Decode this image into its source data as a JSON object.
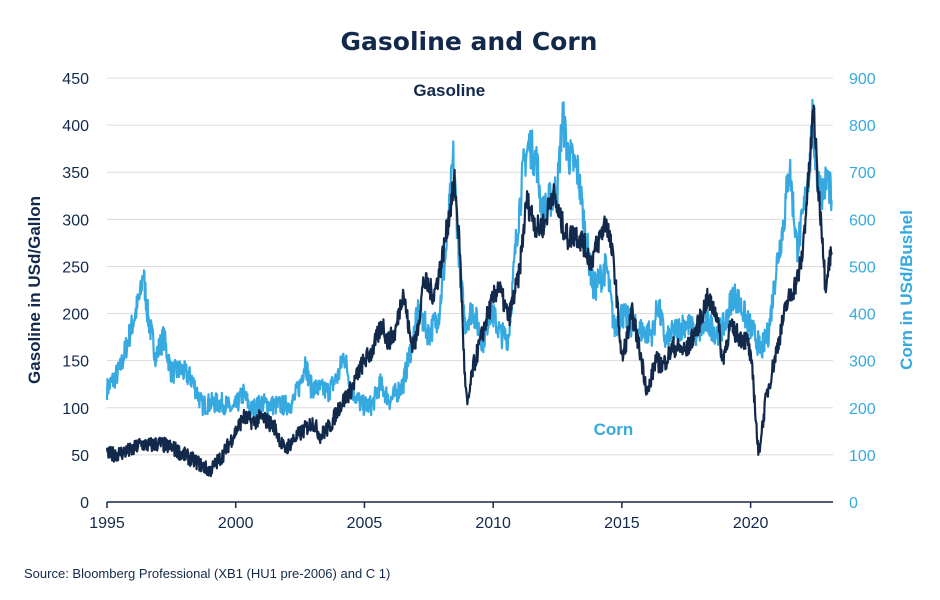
{
  "chart_data": {
    "type": "line",
    "title": "Gasoline and Corn",
    "ylabel_left": "Gasoline in USd/Gallon",
    "ylabel_right": "Corn in USd/Bushel",
    "xlim": [
      1995,
      2023.2
    ],
    "ylim_left": [
      0,
      450
    ],
    "ylim_right": [
      0,
      900
    ],
    "x_ticks": [
      1995,
      2000,
      2005,
      2010,
      2015,
      2020
    ],
    "y_ticks_left": [
      0,
      50,
      100,
      150,
      200,
      250,
      300,
      350,
      400,
      450
    ],
    "y_ticks_right": [
      0,
      100,
      200,
      300,
      400,
      500,
      600,
      700,
      800,
      900
    ],
    "grid": true,
    "source": "Source: Bloomberg Professional  (XB1 (HU1 pre-2006) and C 1)",
    "series": [
      {
        "name": "Gasoline",
        "axis": "left",
        "color": "#13294b",
        "label_at": [
          2006.9,
          437
        ],
        "points": [
          [
            1995.0,
            50
          ],
          [
            1995.5,
            52
          ],
          [
            1996.0,
            55
          ],
          [
            1996.3,
            62
          ],
          [
            1996.6,
            60
          ],
          [
            1997.0,
            62
          ],
          [
            1997.5,
            58
          ],
          [
            1998.0,
            50
          ],
          [
            1998.5,
            42
          ],
          [
            1999.0,
            33
          ],
          [
            1999.5,
            50
          ],
          [
            2000.0,
            75
          ],
          [
            2000.3,
            90
          ],
          [
            2000.7,
            85
          ],
          [
            2001.0,
            90
          ],
          [
            2001.5,
            80
          ],
          [
            2001.9,
            55
          ],
          [
            2002.2,
            65
          ],
          [
            2002.6,
            75
          ],
          [
            2003.0,
            85
          ],
          [
            2003.3,
            70
          ],
          [
            2003.7,
            82
          ],
          [
            2004.0,
            100
          ],
          [
            2004.5,
            120
          ],
          [
            2004.8,
            140
          ],
          [
            2005.0,
            150
          ],
          [
            2005.3,
            160
          ],
          [
            2005.7,
            190
          ],
          [
            2005.9,
            170
          ],
          [
            2006.2,
            180
          ],
          [
            2006.5,
            225
          ],
          [
            2006.8,
            170
          ],
          [
            2007.0,
            170
          ],
          [
            2007.3,
            235
          ],
          [
            2007.7,
            220
          ],
          [
            2008.0,
            255
          ],
          [
            2008.5,
            340
          ],
          [
            2008.7,
            270
          ],
          [
            2008.9,
            130
          ],
          [
            2009.0,
            100
          ],
          [
            2009.2,
            140
          ],
          [
            2009.5,
            170
          ],
          [
            2009.8,
            200
          ],
          [
            2010.2,
            230
          ],
          [
            2010.6,
            195
          ],
          [
            2011.0,
            240
          ],
          [
            2011.3,
            320
          ],
          [
            2011.7,
            290
          ],
          [
            2012.0,
            295
          ],
          [
            2012.3,
            330
          ],
          [
            2012.6,
            300
          ],
          [
            2012.9,
            280
          ],
          [
            2013.2,
            285
          ],
          [
            2013.5,
            275
          ],
          [
            2013.8,
            255
          ],
          [
            2014.0,
            270
          ],
          [
            2014.4,
            300
          ],
          [
            2014.7,
            250
          ],
          [
            2015.0,
            150
          ],
          [
            2015.4,
            200
          ],
          [
            2015.7,
            160
          ],
          [
            2016.0,
            115
          ],
          [
            2016.3,
            150
          ],
          [
            2016.6,
            145
          ],
          [
            2017.0,
            165
          ],
          [
            2017.5,
            160
          ],
          [
            2018.0,
            190
          ],
          [
            2018.3,
            215
          ],
          [
            2018.7,
            200
          ],
          [
            2018.9,
            150
          ],
          [
            2019.2,
            185
          ],
          [
            2019.6,
            175
          ],
          [
            2019.9,
            170
          ],
          [
            2020.1,
            130
          ],
          [
            2020.3,
            50
          ],
          [
            2020.6,
            110
          ],
          [
            2021.0,
            160
          ],
          [
            2021.4,
            210
          ],
          [
            2021.8,
            235
          ],
          [
            2022.0,
            260
          ],
          [
            2022.3,
            360
          ],
          [
            2022.45,
            420
          ],
          [
            2022.6,
            340
          ],
          [
            2022.8,
            280
          ],
          [
            2022.9,
            230
          ],
          [
            2023.0,
            250
          ],
          [
            2023.15,
            265
          ]
        ]
      },
      {
        "name": "Corn",
        "axis": "right",
        "color": "#36a9e1",
        "label_at": [
          2013.9,
          155
        ],
        "points": [
          [
            1995.0,
            240
          ],
          [
            1995.5,
            280
          ],
          [
            1995.9,
            360
          ],
          [
            1996.3,
            440
          ],
          [
            1996.4,
            490
          ],
          [
            1996.6,
            390
          ],
          [
            1996.9,
            310
          ],
          [
            1997.2,
            350
          ],
          [
            1997.5,
            275
          ],
          [
            1997.9,
            280
          ],
          [
            1998.3,
            260
          ],
          [
            1998.7,
            205
          ],
          [
            1999.0,
            210
          ],
          [
            1999.5,
            210
          ],
          [
            1999.9,
            195
          ],
          [
            2000.3,
            230
          ],
          [
            2000.6,
            195
          ],
          [
            2001.0,
            210
          ],
          [
            2001.5,
            205
          ],
          [
            2001.9,
            205
          ],
          [
            2002.2,
            210
          ],
          [
            2002.5,
            250
          ],
          [
            2002.7,
            300
          ],
          [
            2002.9,
            245
          ],
          [
            2003.2,
            240
          ],
          [
            2003.6,
            235
          ],
          [
            2004.0,
            270
          ],
          [
            2004.2,
            315
          ],
          [
            2004.5,
            240
          ],
          [
            2004.9,
            205
          ],
          [
            2005.3,
            205
          ],
          [
            2005.6,
            250
          ],
          [
            2006.0,
            215
          ],
          [
            2006.5,
            250
          ],
          [
            2006.9,
            350
          ],
          [
            2007.1,
            410
          ],
          [
            2007.5,
            355
          ],
          [
            2007.9,
            400
          ],
          [
            2008.2,
            550
          ],
          [
            2008.45,
            730
          ],
          [
            2008.7,
            500
          ],
          [
            2008.9,
            380
          ],
          [
            2009.2,
            410
          ],
          [
            2009.6,
            340
          ],
          [
            2009.9,
            410
          ],
          [
            2010.3,
            355
          ],
          [
            2010.6,
            350
          ],
          [
            2010.9,
            560
          ],
          [
            2011.2,
            720
          ],
          [
            2011.4,
            760
          ],
          [
            2011.7,
            720
          ],
          [
            2011.9,
            610
          ],
          [
            2012.2,
            640
          ],
          [
            2012.5,
            670
          ],
          [
            2012.7,
            820
          ],
          [
            2012.9,
            740
          ],
          [
            2013.3,
            700
          ],
          [
            2013.6,
            560
          ],
          [
            2013.9,
            450
          ],
          [
            2014.2,
            480
          ],
          [
            2014.4,
            500
          ],
          [
            2014.7,
            370
          ],
          [
            2015.0,
            400
          ],
          [
            2015.5,
            370
          ],
          [
            2015.9,
            360
          ],
          [
            2016.2,
            360
          ],
          [
            2016.4,
            420
          ],
          [
            2016.7,
            340
          ],
          [
            2017.0,
            360
          ],
          [
            2017.5,
            380
          ],
          [
            2017.9,
            355
          ],
          [
            2018.3,
            380
          ],
          [
            2018.7,
            360
          ],
          [
            2019.0,
            375
          ],
          [
            2019.3,
            440
          ],
          [
            2019.5,
            430
          ],
          [
            2019.9,
            380
          ],
          [
            2020.2,
            350
          ],
          [
            2020.4,
            320
          ],
          [
            2020.7,
            360
          ],
          [
            2021.0,
            500
          ],
          [
            2021.3,
            600
          ],
          [
            2021.5,
            720
          ],
          [
            2021.8,
            540
          ],
          [
            2022.0,
            590
          ],
          [
            2022.3,
            720
          ],
          [
            2022.4,
            810
          ],
          [
            2022.6,
            680
          ],
          [
            2022.8,
            660
          ],
          [
            2023.0,
            690
          ],
          [
            2023.15,
            640
          ]
        ]
      }
    ]
  }
}
